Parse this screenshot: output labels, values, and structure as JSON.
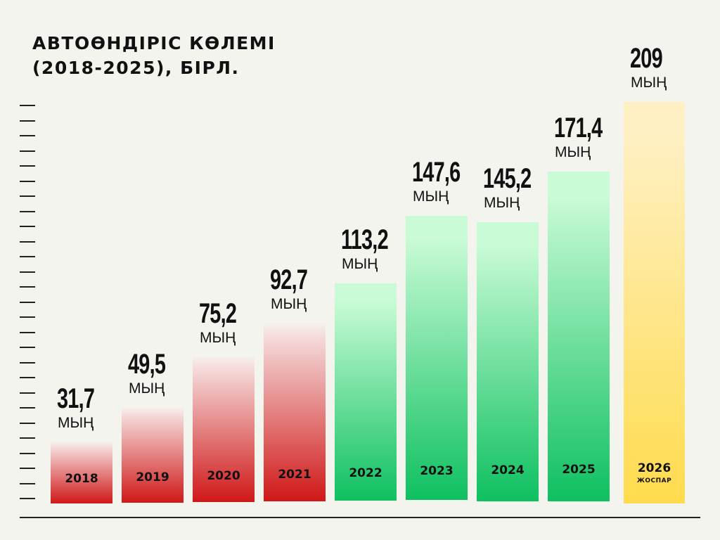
{
  "title": {
    "line1": "АВТОӨНДІРІС КӨЛЕМІ",
    "line2": "(2018-2025), БІРЛ."
  },
  "colors": {
    "background": "#f4f4ef",
    "red_top": "#f5dada",
    "red_bottom": "#d01818",
    "green_top": "#c9fbd6",
    "green_bottom": "#0ec060",
    "yellow_top": "#fff0c4",
    "yellow_bottom": "#ffdb4d"
  },
  "chart_data": {
    "type": "bar",
    "title": "АВТОӨНДІРІС КӨЛЕМІ (2018-2025), БІРЛ.",
    "categories": [
      "2018",
      "2019",
      "2020",
      "2021",
      "2022",
      "2023",
      "2024",
      "2025",
      "2026"
    ],
    "values": [
      31.7,
      49.5,
      75.2,
      92.7,
      113.2,
      147.6,
      145.2,
      171.4,
      209
    ],
    "value_labels": [
      "31,7",
      "49,5",
      "75,2",
      "92,7",
      "113,2",
      "147,6",
      "145,2",
      "171,4",
      "209"
    ],
    "unit": "МЫҢ",
    "sublabels": [
      "",
      "",
      "",
      "",
      "",
      "",
      "",
      "",
      "ЖОСПАР"
    ],
    "color_groups": [
      "red",
      "red",
      "red",
      "red",
      "green",
      "green",
      "green",
      "green",
      "yellow"
    ],
    "xlabel": "",
    "ylabel": "",
    "ylim": [
      0,
      215
    ]
  }
}
